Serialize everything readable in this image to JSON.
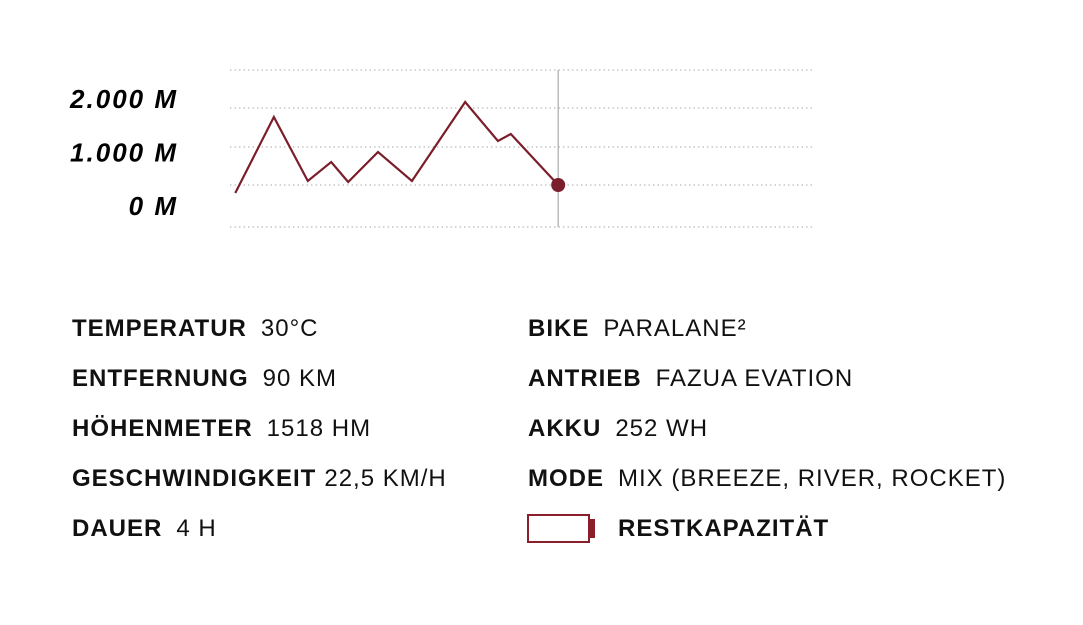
{
  "chart_data": {
    "type": "line",
    "x": [
      0.9,
      7.5,
      13.3,
      17.3,
      20.2,
      25.3,
      31.1,
      40.2,
      45.8,
      48.0,
      56.1
    ],
    "xlim": [
      0,
      100
    ],
    "ylim": [
      -411,
      2523
    ],
    "yticks": [
      {
        "value": 2000,
        "label": "2.000 M"
      },
      {
        "value": 1000,
        "label": "1.000 M"
      },
      {
        "value": 0,
        "label": "0 M"
      }
    ],
    "series": [
      {
        "color": "#7b1e2b",
        "values": [
          224,
          1645,
          449,
          804,
          430,
          991,
          449,
          1925,
          1196,
          1327,
          374
        ]
      }
    ]
  },
  "stats": {
    "left": [
      {
        "label": "TEMPERATUR",
        "value": "30°C"
      },
      {
        "label": "ENTFERNUNG",
        "value": "90 KM"
      },
      {
        "label": "HÖHENMETER",
        "value": "1518 HM"
      },
      {
        "label": "GESCHWINDIGKEIT",
        "value": "22,5 KM/H"
      },
      {
        "label": "DAUER",
        "value": "4 H"
      }
    ],
    "right": [
      {
        "label": "BIKE",
        "value": "PARALANE²"
      },
      {
        "label": "ANTRIEB",
        "value": "FAZUA EVATION"
      },
      {
        "label": "AKKU",
        "value": "252 WH"
      },
      {
        "label": "MODE",
        "value": "MIX (BREEZE, RIVER, ROCKET)"
      }
    ]
  },
  "battery": {
    "label": "RESTKAPAZITÄT"
  }
}
